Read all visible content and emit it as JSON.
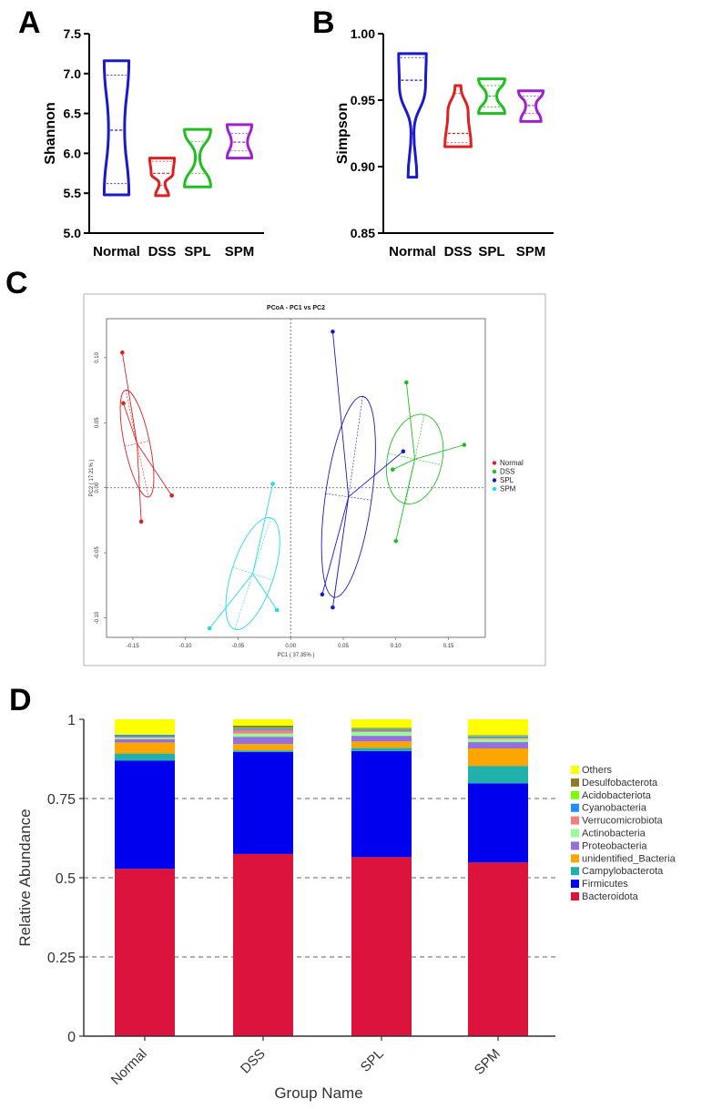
{
  "panel_labels": {
    "a": "A",
    "b": "B",
    "c": "C",
    "d": "D"
  },
  "chart_data": [
    {
      "type": "violin",
      "panel": "A",
      "title": "",
      "ylabel": "Shannon",
      "ylim": [
        5.0,
        7.5
      ],
      "yticks": [
        "5.0",
        "5.5",
        "6.0",
        "6.5",
        "7.0",
        "7.5"
      ],
      "categories": [
        "Normal",
        "DSS",
        "SPL",
        "SPM"
      ],
      "colors": [
        "#1a1acc",
        "#e02020",
        "#1fbf1f",
        "#a020d0"
      ],
      "groups": [
        {
          "name": "Normal",
          "min": 5.48,
          "max": 7.16,
          "median": 6.29,
          "q1": 5.62,
          "q3": 6.98,
          "width_profile": [
            [
              5.48,
              0.85
            ],
            [
              6.3,
              0.55
            ],
            [
              7.16,
              0.85
            ]
          ]
        },
        {
          "name": "DSS",
          "min": 5.47,
          "max": 5.94,
          "median": 5.75,
          "q1": 5.6,
          "q3": 5.9,
          "width_profile": [
            [
              5.47,
              0.45
            ],
            [
              5.62,
              0.2
            ],
            [
              5.75,
              0.75
            ],
            [
              5.94,
              0.85
            ]
          ]
        },
        {
          "name": "SPL",
          "min": 5.58,
          "max": 6.3,
          "median": 5.95,
          "q1": 5.75,
          "q3": 6.15,
          "width_profile": [
            [
              5.58,
              0.9
            ],
            [
              5.95,
              0.15
            ],
            [
              6.3,
              0.9
            ]
          ]
        },
        {
          "name": "SPM",
          "min": 5.94,
          "max": 6.36,
          "median": 6.14,
          "q1": 6.03,
          "q3": 6.25,
          "width_profile": [
            [
              5.94,
              0.85
            ],
            [
              6.14,
              0.55
            ],
            [
              6.36,
              0.85
            ]
          ]
        }
      ]
    },
    {
      "type": "violin",
      "panel": "B",
      "title": "",
      "ylabel": "Simpson",
      "ylim": [
        0.85,
        1.0
      ],
      "yticks": [
        "0.85",
        "0.90",
        "0.95",
        "1.00"
      ],
      "categories": [
        "Normal",
        "DSS",
        "SPL",
        "SPM"
      ],
      "colors": [
        "#1a1acc",
        "#e02020",
        "#1fbf1f",
        "#a020d0"
      ],
      "groups": [
        {
          "name": "Normal",
          "min": 0.892,
          "max": 0.985,
          "median": 0.965,
          "q1": 0.925,
          "q3": 0.982,
          "width_profile": [
            [
              0.892,
              0.3
            ],
            [
              0.925,
              0.1
            ],
            [
              0.962,
              0.9
            ],
            [
              0.985,
              0.95
            ]
          ]
        },
        {
          "name": "DSS",
          "min": 0.915,
          "max": 0.961,
          "median": 0.925,
          "q1": 0.918,
          "q3": 0.955,
          "width_profile": [
            [
              0.915,
              0.9
            ],
            [
              0.94,
              0.7
            ],
            [
              0.961,
              0.2
            ]
          ]
        },
        {
          "name": "SPL",
          "min": 0.94,
          "max": 0.966,
          "median": 0.953,
          "q1": 0.945,
          "q3": 0.961,
          "width_profile": [
            [
              0.94,
              0.9
            ],
            [
              0.953,
              0.35
            ],
            [
              0.966,
              0.9
            ]
          ]
        },
        {
          "name": "SPM",
          "min": 0.934,
          "max": 0.957,
          "median": 0.946,
          "q1": 0.94,
          "q3": 0.953,
          "width_profile": [
            [
              0.934,
              0.7
            ],
            [
              0.946,
              0.35
            ],
            [
              0.957,
              0.85
            ]
          ]
        }
      ]
    },
    {
      "type": "scatter",
      "panel": "C",
      "title": "PCoA - PC1 vs PC2",
      "xlabel": "PC1 ( 37.35% )",
      "ylabel": "PC2 ( 17.21% )",
      "xlim": [
        -0.175,
        0.185
      ],
      "ylim": [
        -0.115,
        0.13
      ],
      "xticks": [
        -0.15,
        -0.1,
        -0.05,
        0.0,
        0.05,
        0.1,
        0.15
      ],
      "xtick_labels": [
        "-0.15",
        "-0.10",
        "-0.05",
        "0.00",
        "0.05",
        "0.10",
        "0.15"
      ],
      "yticks": [
        -0.1,
        -0.05,
        0.0,
        0.05,
        0.1
      ],
      "ytick_labels": [
        "-0.10",
        "-0.05",
        "0.00",
        "0.05",
        "0.10"
      ],
      "legend_position": "right",
      "series": [
        {
          "name": "Normal",
          "color": "#e02020",
          "points": [
            [
              -0.16,
              0.104
            ],
            [
              -0.159,
              0.065
            ],
            [
              -0.113,
              -0.006
            ],
            [
              -0.142,
              -0.026
            ]
          ],
          "centroid": [
            -0.146,
            0.034
          ],
          "ellipse": {
            "rx": 0.012,
            "ry": 0.042,
            "angle": -12
          }
        },
        {
          "name": "DSS",
          "color": "#1fbf1f",
          "points": [
            [
              0.11,
              0.081
            ],
            [
              0.165,
              0.033
            ],
            [
              0.097,
              0.014
            ],
            [
              0.1,
              -0.041
            ]
          ],
          "centroid": [
            0.118,
            0.022
          ],
          "ellipse": {
            "rx": 0.026,
            "ry": 0.035,
            "angle": 12
          }
        },
        {
          "name": "SPL",
          "color": "#1a1acc",
          "points": [
            [
              0.04,
              0.12
            ],
            [
              0.107,
              0.028
            ],
            [
              0.03,
              -0.082
            ],
            [
              0.04,
              -0.092
            ]
          ],
          "centroid": [
            0.055,
            -0.007
          ],
          "ellipse": {
            "rx": 0.022,
            "ry": 0.078,
            "angle": 8
          }
        },
        {
          "name": "SPM",
          "color": "#22dddd",
          "points": [
            [
              -0.017,
              0.003
            ],
            [
              -0.013,
              -0.094
            ],
            [
              -0.077,
              -0.108
            ]
          ],
          "centroid": [
            -0.036,
            -0.066
          ],
          "ellipse": {
            "rx": 0.02,
            "ry": 0.045,
            "angle": 18
          }
        }
      ]
    },
    {
      "type": "bar",
      "stacked": true,
      "panel": "D",
      "title": "",
      "xlabel": "Group Name",
      "ylabel": "Relative Abundance",
      "ylim": [
        0,
        1
      ],
      "yticks": [
        "0",
        "0.25",
        "0.5",
        "0.75",
        "1"
      ],
      "categories": [
        "Normal",
        "DSS",
        "SPL",
        "SPM"
      ],
      "legend_position": "right",
      "series": [
        {
          "name": "Bacteroidota",
          "color": "#dc143c",
          "values": [
            0.528,
            0.575,
            0.565,
            0.548
          ]
        },
        {
          "name": "Firmicutes",
          "color": "#0000ee",
          "values": [
            0.342,
            0.322,
            0.335,
            0.25
          ]
        },
        {
          "name": "Campylobacterota",
          "color": "#20b2aa",
          "values": [
            0.022,
            0.005,
            0.01,
            0.055
          ]
        },
        {
          "name": "unidentified_Bacteria",
          "color": "#ffa500",
          "values": [
            0.035,
            0.02,
            0.02,
            0.055
          ]
        },
        {
          "name": "Proteobacteria",
          "color": "#9370db",
          "values": [
            0.01,
            0.023,
            0.018,
            0.02
          ]
        },
        {
          "name": "Actinobacteria",
          "color": "#98fb98",
          "values": [
            0.004,
            0.01,
            0.012,
            0.01
          ]
        },
        {
          "name": "Verrucomicrobiota",
          "color": "#f08080",
          "values": [
            0.004,
            0.012,
            0.004,
            0.004
          ]
        },
        {
          "name": "Cyanobacteria",
          "color": "#1e90ff",
          "values": [
            0.006,
            0.004,
            0.004,
            0.004
          ]
        },
        {
          "name": "Acidobacteriota",
          "color": "#7cfc00",
          "values": [
            0.0,
            0.002,
            0.002,
            0.002
          ]
        },
        {
          "name": "Desulfobacterota",
          "color": "#8b7d2a",
          "values": [
            0.0,
            0.007,
            0.003,
            0.002
          ]
        },
        {
          "name": "Others",
          "color": "#ffff00",
          "values": [
            0.049,
            0.02,
            0.027,
            0.05
          ]
        }
      ]
    }
  ]
}
